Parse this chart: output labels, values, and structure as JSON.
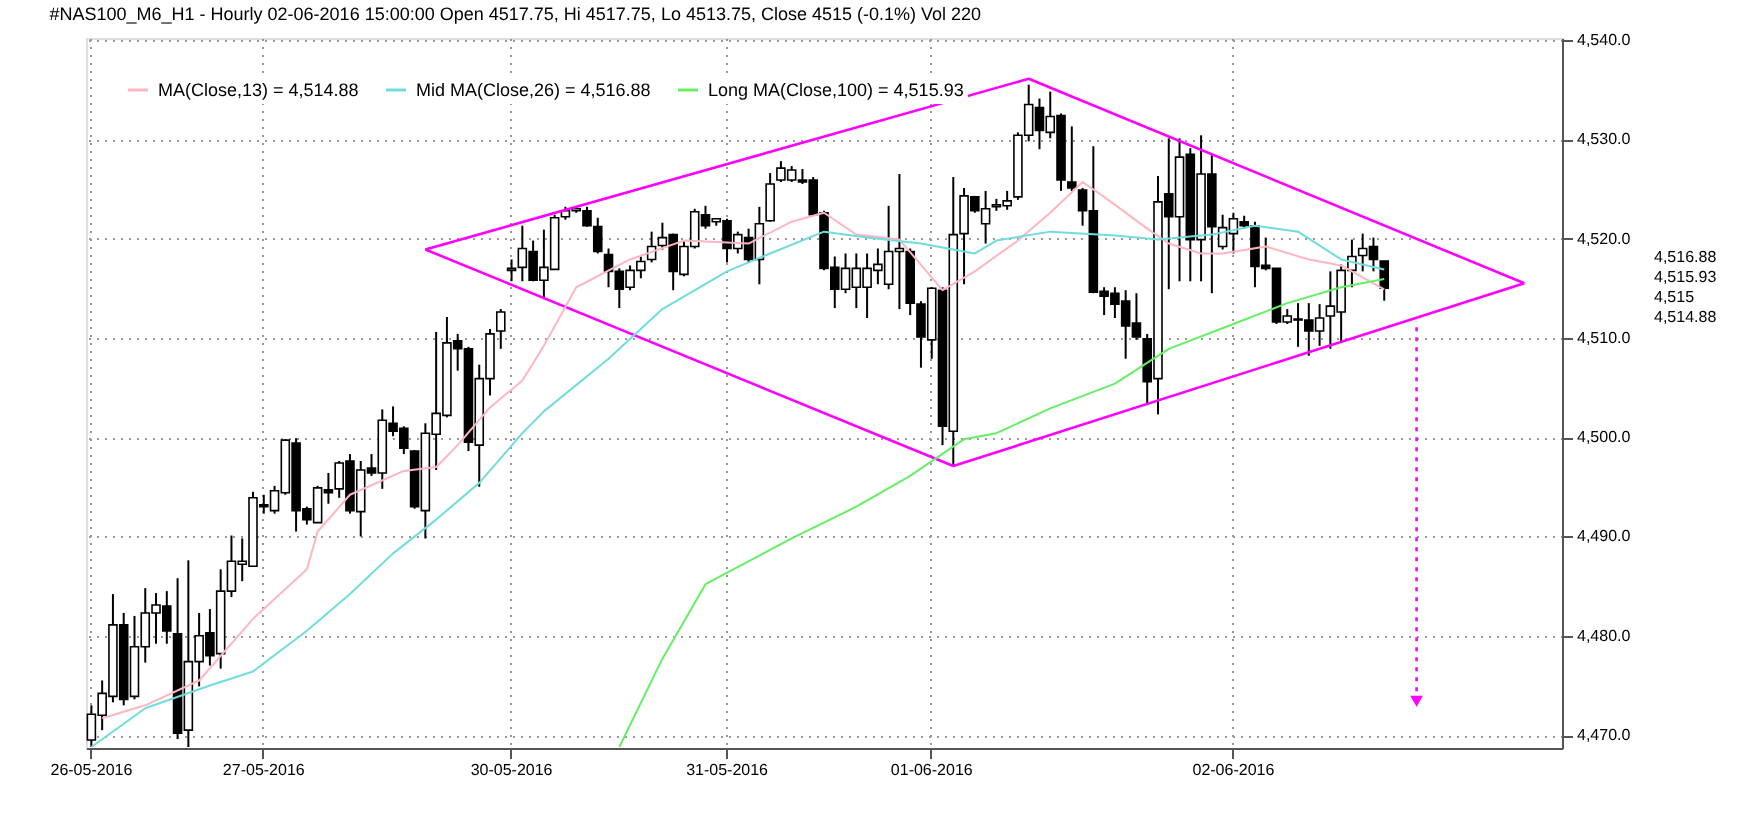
{
  "chart_data": {
    "type": "candlestick",
    "title": "#NAS100_M6_H1 - Hourly 02-06-2016 15:00:00 Open 4517.75, Hi 4517.75, Lo 4513.75, Close 4515 (-0.1%) Vol 220",
    "categories": [
      "26-05-2016",
      null,
      null,
      null,
      null,
      null,
      null,
      null,
      null,
      null,
      null,
      null,
      null,
      null,
      null,
      null,
      "27-05-2016",
      null,
      null,
      null,
      null,
      null,
      null,
      null,
      null,
      null,
      null,
      null,
      null,
      null,
      null,
      null,
      null,
      null,
      null,
      null,
      null,
      null,
      null,
      "30-05-2016",
      null,
      null,
      null,
      null,
      null,
      null,
      null,
      null,
      null,
      null,
      null,
      null,
      null,
      null,
      null,
      null,
      null,
      null,
      null,
      "31-05-2016",
      null,
      null,
      null,
      null,
      null,
      null,
      null,
      null,
      null,
      null,
      null,
      null,
      null,
      null,
      null,
      null,
      null,
      null,
      "01-06-2016",
      null,
      null,
      null,
      null,
      null,
      null,
      null,
      null,
      null,
      null,
      null,
      null,
      null,
      null,
      null,
      null,
      null,
      null,
      null,
      null,
      null,
      null,
      null,
      null,
      null,
      null,
      null,
      "02-06-2016",
      null,
      null,
      null,
      null,
      null,
      null,
      null,
      null,
      null,
      null,
      null,
      null,
      null,
      null,
      null,
      null,
      null,
      null,
      null,
      null,
      null,
      null,
      null,
      null,
      null,
      null,
      null,
      null,
      null,
      null
    ],
    "ohlc": [
      [
        4469.5,
        4473.0,
        4468.8,
        4472.1
      ],
      [
        4472.0,
        4475.5,
        4470.5,
        4474.2
      ],
      [
        4473.9,
        4484.2,
        4473.3,
        4481.1
      ],
      [
        4481.1,
        4482.3,
        4473.0,
        4473.6
      ],
      [
        4473.9,
        4482.0,
        4473.6,
        4478.9
      ],
      [
        4478.9,
        4484.8,
        4477.3,
        4482.3
      ],
      [
        4482.3,
        4484.3,
        4479.2,
        4483.1
      ],
      [
        4483.0,
        4484.5,
        4479.2,
        4480.5
      ],
      [
        4480.2,
        4485.8,
        4469.6,
        4470.2
      ],
      [
        4470.5,
        4487.6,
        4468.8,
        4477.4
      ],
      [
        4477.4,
        4482.3,
        4474.9,
        4480.0
      ],
      [
        4480.3,
        4482.7,
        4477.0,
        4478.0
      ],
      [
        4478.2,
        4486.7,
        4476.7,
        4484.5
      ],
      [
        4484.5,
        4490.1,
        4483.9,
        4487.5
      ],
      [
        4487.2,
        4489.8,
        4485.5,
        4487.5
      ],
      [
        4487.0,
        4494.5,
        4487.0,
        4493.9
      ],
      [
        4493.2,
        4494.2,
        4492.3,
        4493.0
      ],
      [
        4492.6,
        4495.1,
        4492.3,
        4494.6
      ],
      [
        4494.4,
        4499.8,
        4494.2,
        4499.7
      ],
      [
        4499.4,
        4499.9,
        4490.5,
        4492.6
      ],
      [
        4492.8,
        4493.0,
        4491.2,
        4491.7
      ],
      [
        4491.4,
        4495.1,
        4491.4,
        4494.9
      ],
      [
        4494.7,
        4496.4,
        4493.3,
        4494.4
      ],
      [
        4494.8,
        4497.6,
        4493.9,
        4497.4
      ],
      [
        4497.6,
        4498.3,
        4492.3,
        4492.6
      ],
      [
        4492.5,
        4497.6,
        4490.0,
        4496.7
      ],
      [
        4496.9,
        4498.3,
        4496.1,
        4496.4
      ],
      [
        4496.4,
        4502.8,
        4494.8,
        4501.7
      ],
      [
        4501.4,
        4503.1,
        4500.1,
        4500.6
      ],
      [
        4500.9,
        4501.1,
        4498.3,
        4498.9
      ],
      [
        4498.6,
        4498.7,
        4492.8,
        4493.0
      ],
      [
        4492.6,
        4501.4,
        4489.8,
        4500.4
      ],
      [
        4500.3,
        4510.6,
        4496.7,
        4502.4
      ],
      [
        4502.2,
        4512.1,
        4502.0,
        4509.5
      ],
      [
        4509.7,
        4510.4,
        4506.7,
        4508.9
      ],
      [
        4508.9,
        4509.1,
        4498.6,
        4499.5
      ],
      [
        4499.2,
        4507.3,
        4495.0,
        4505.9
      ],
      [
        4505.9,
        4510.9,
        4504.2,
        4510.4
      ],
      [
        4510.7,
        4512.9,
        4508.9,
        4512.6
      ],
      [
        4516.8,
        4517.9,
        4515.7,
        4517.0
      ],
      [
        4517.1,
        4521.3,
        4515.7,
        4519.0
      ],
      [
        4518.7,
        4519.8,
        4515.7,
        4515.8
      ],
      [
        4515.8,
        4520.9,
        4513.9,
        4517.1
      ],
      [
        4516.9,
        4522.4,
        4516.9,
        4522.1
      ],
      [
        4522.2,
        4523.2,
        4521.9,
        4522.8
      ],
      [
        4522.8,
        4523.2,
        4522.6,
        4523.0
      ],
      [
        4522.8,
        4523.2,
        4521.2,
        4521.3
      ],
      [
        4521.2,
        4522.1,
        4518.5,
        4518.7
      ],
      [
        4518.4,
        4519.0,
        4515.1,
        4516.7
      ],
      [
        4516.7,
        4517.0,
        4513.0,
        4514.9
      ],
      [
        4515.1,
        4517.3,
        4514.8,
        4516.8
      ],
      [
        4516.8,
        4518.2,
        4516.0,
        4517.7
      ],
      [
        4517.9,
        4520.7,
        4517.6,
        4519.2
      ],
      [
        4519.3,
        4521.6,
        4518.9,
        4520.1
      ],
      [
        4520.4,
        4520.5,
        4514.8,
        4516.7
      ],
      [
        4516.4,
        4519.7,
        4516.2,
        4519.2
      ],
      [
        4519.2,
        4523.0,
        4519.0,
        4522.7
      ],
      [
        4522.4,
        4523.3,
        4521.0,
        4521.3
      ],
      [
        4521.7,
        4522.0,
        4521.3,
        4522.0
      ],
      [
        4521.8,
        4522.0,
        4517.6,
        4519.0
      ],
      [
        4519.0,
        4520.7,
        4518.5,
        4520.4
      ],
      [
        4520.1,
        4521.0,
        4517.6,
        4517.9
      ],
      [
        4517.9,
        4523.2,
        4515.4,
        4521.5
      ],
      [
        4521.8,
        4526.6,
        4521.7,
        4525.5
      ],
      [
        4525.9,
        4527.8,
        4525.7,
        4527.1
      ],
      [
        4525.9,
        4527.3,
        4525.7,
        4526.9
      ],
      [
        4525.9,
        4527.0,
        4525.5,
        4525.7
      ],
      [
        4525.9,
        4526.2,
        4522.3,
        4522.4
      ],
      [
        4522.6,
        4522.8,
        4516.8,
        4517.0
      ],
      [
        4517.1,
        4518.2,
        4513.0,
        4514.9
      ],
      [
        4514.9,
        4518.5,
        4514.5,
        4517.0
      ],
      [
        4515.1,
        4518.5,
        4513.0,
        4517.0
      ],
      [
        4515.1,
        4518.5,
        4512.0,
        4517.0
      ],
      [
        4516.8,
        4519.0,
        4515.4,
        4517.4
      ],
      [
        4515.4,
        4523.3,
        4514.9,
        4518.7
      ],
      [
        4518.7,
        4526.5,
        4512.9,
        4519.0
      ],
      [
        4518.7,
        4519.0,
        4512.3,
        4513.5
      ],
      [
        4513.4,
        4513.7,
        4507.0,
        4510.1
      ],
      [
        4509.8,
        4515.1,
        4507.9,
        4515.0
      ],
      [
        4514.8,
        4515.1,
        4499.2,
        4501.1
      ],
      [
        4500.6,
        4526.2,
        4497.1,
        4520.4
      ],
      [
        4520.5,
        4525.1,
        4515.4,
        4524.3
      ],
      [
        4524.2,
        4524.3,
        4522.6,
        4522.8
      ],
      [
        4521.5,
        4524.8,
        4519.5,
        4523.0
      ],
      [
        4523.2,
        4524.0,
        4522.8,
        4523.4
      ],
      [
        4523.3,
        4524.8,
        4522.9,
        4523.8
      ],
      [
        4524.2,
        4530.7,
        4523.9,
        4530.4
      ],
      [
        4530.4,
        4535.5,
        4529.8,
        4533.5
      ],
      [
        4533.2,
        4534.1,
        4529.0,
        4530.9
      ],
      [
        4530.7,
        4534.8,
        4530.1,
        4532.3
      ],
      [
        4532.4,
        4532.6,
        4524.8,
        4525.9
      ],
      [
        4525.7,
        4531.3,
        4524.8,
        4525.1
      ],
      [
        4524.9,
        4525.1,
        4521.3,
        4522.8
      ],
      [
        4522.8,
        4529.3,
        4514.5,
        4514.6
      ],
      [
        4514.7,
        4515.1,
        4512.3,
        4514.2
      ],
      [
        4514.5,
        4515.1,
        4512.0,
        4513.4
      ],
      [
        4513.7,
        4514.8,
        4507.9,
        4511.2
      ],
      [
        4511.5,
        4514.5,
        4509.8,
        4510.1
      ],
      [
        4509.9,
        4510.4,
        4503.3,
        4505.6
      ],
      [
        4505.9,
        4526.3,
        4502.3,
        4523.7
      ],
      [
        4524.5,
        4530.1,
        4514.9,
        4522.2
      ],
      [
        4522.2,
        4530.1,
        4515.7,
        4528.2
      ],
      [
        4528.5,
        4529.1,
        4515.7,
        4519.9
      ],
      [
        4519.9,
        4530.4,
        4515.7,
        4526.5
      ],
      [
        4526.5,
        4528.5,
        4514.5,
        4521.2
      ],
      [
        4519.2,
        4522.4,
        4518.9,
        4521.1
      ],
      [
        4520.5,
        4522.6,
        4518.5,
        4522.0
      ],
      [
        4521.7,
        4522.3,
        4521.0,
        4521.3
      ],
      [
        4521.3,
        4521.7,
        4515.1,
        4517.2
      ],
      [
        4517.3,
        4520.1,
        4516.8,
        4517.0
      ],
      [
        4517.0,
        4517.0,
        4511.4,
        4511.6
      ],
      [
        4511.6,
        4512.9,
        4511.4,
        4512.2
      ],
      [
        4511.8,
        4513.5,
        4509.1,
        4511.9
      ],
      [
        4511.8,
        4513.5,
        4508.2,
        4510.7
      ],
      [
        4510.7,
        4513.4,
        4509.2,
        4512.0
      ],
      [
        4512.2,
        4516.7,
        4508.9,
        4513.2
      ],
      [
        4512.6,
        4517.4,
        4509.5,
        4516.8
      ],
      [
        4516.8,
        4519.9,
        4515.1,
        4518.2
      ],
      [
        4518.3,
        4520.5,
        4516.7,
        4519.0
      ],
      [
        4519.2,
        4520.1,
        4516.7,
        4517.9
      ],
      [
        4517.75,
        4517.75,
        4513.75,
        4515
      ],
      null,
      null,
      null,
      null,
      null,
      null,
      null,
      null,
      null,
      null,
      null,
      null,
      null,
      null,
      null,
      null
    ],
    "series": [
      {
        "type": "line",
        "name": "MA(Close,13) = 4,514.88",
        "color": "#ffb6c1",
        "values": [
          null,
          4471.7,
          null,
          null,
          null,
          4473.0,
          null,
          null,
          null,
          null,
          4475.5,
          null,
          null,
          null,
          null,
          4481.7,
          null,
          null,
          null,
          null,
          4486.7,
          4490.5,
          null,
          null,
          4494.2,
          null,
          null,
          null,
          null,
          4496.6,
          null,
          null,
          4497.0,
          null,
          4499.2,
          null,
          null,
          4503.0,
          null,
          null,
          4505.7,
          null,
          4509.2,
          null,
          null,
          4515.1,
          null,
          null,
          null,
          null,
          4517.9,
          null,
          null,
          null,
          null,
          4519.8,
          null,
          null,
          null,
          null,
          null,
          4519.5,
          null,
          null,
          null,
          4521.7,
          null,
          null,
          4522.6,
          null,
          null,
          4520.4,
          null,
          null,
          null,
          4519.9,
          null,
          null,
          null,
          4514.8,
          null,
          null,
          4516.7,
          null,
          null,
          null,
          4519.8,
          null,
          null,
          4522.6,
          null,
          null,
          4525.7,
          null,
          4524.2,
          null,
          null,
          null,
          4521.0,
          null,
          4519.5,
          null,
          null,
          4518.5,
          null,
          4518.5,
          null,
          null,
          null,
          4519.2,
          null,
          null,
          null,
          4517.9,
          null,
          null,
          4517.3,
          null,
          null,
          null,
          4514.88,
          null,
          null,
          null,
          null,
          null,
          null,
          null,
          null,
          null,
          null,
          null,
          null,
          null,
          null,
          null,
          null
        ]
      },
      {
        "type": "line",
        "name": "Mid MA(Close,26) = 4,516.88",
        "color": "#70dcdc",
        "values": [
          4468.8,
          null,
          null,
          null,
          null,
          4472.7,
          null,
          null,
          null,
          null,
          null,
          4475.0,
          null,
          null,
          null,
          4476.4,
          null,
          null,
          null,
          null,
          4480.5,
          null,
          null,
          null,
          4484.2,
          null,
          null,
          null,
          4488.3,
          null,
          null,
          null,
          4491.7,
          null,
          null,
          null,
          4495.4,
          null,
          null,
          null,
          4500.4,
          null,
          4502.6,
          null,
          null,
          null,
          null,
          null,
          4507.9,
          null,
          null,
          null,
          null,
          4512.9,
          null,
          null,
          null,
          null,
          null,
          4516.7,
          null,
          null,
          null,
          4518.5,
          null,
          null,
          null,
          null,
          4520.7,
          null,
          null,
          null,
          4520.1,
          null,
          null,
          null,
          null,
          4519.5,
          null,
          null,
          null,
          null,
          4518.5,
          null,
          4519.8,
          null,
          null,
          null,
          null,
          4520.7,
          null,
          null,
          null,
          null,
          null,
          4520.3,
          null,
          null,
          null,
          4519.9,
          null,
          null,
          null,
          null,
          4520.4,
          null,
          null,
          null,
          4521.3,
          null,
          null,
          null,
          4520.7,
          null,
          null,
          null,
          4517.9,
          null,
          null,
          null,
          4516.88,
          null,
          null,
          null,
          null,
          null,
          null,
          null,
          null,
          null,
          null,
          null,
          null,
          null,
          null,
          null,
          null
        ]
      },
      {
        "type": "line",
        "name": "Long MA(Close,100) = 4,515.93",
        "color": "#66ee66",
        "values": [
          null,
          null,
          null,
          null,
          null,
          null,
          null,
          null,
          null,
          null,
          null,
          null,
          null,
          null,
          null,
          null,
          null,
          null,
          null,
          null,
          null,
          null,
          null,
          null,
          null,
          null,
          null,
          null,
          null,
          null,
          null,
          null,
          null,
          null,
          null,
          null,
          null,
          null,
          null,
          null,
          null,
          null,
          null,
          null,
          null,
          null,
          null,
          null,
          null,
          4468.8,
          null,
          null,
          null,
          4477.7,
          null,
          null,
          null,
          4485.2,
          null,
          null,
          null,
          null,
          null,
          null,
          null,
          4489.8,
          null,
          null,
          null,
          null,
          null,
          4493.0,
          null,
          null,
          null,
          null,
          4496.1,
          null,
          null,
          null,
          null,
          4499.8,
          null,
          null,
          4500.4,
          null,
          null,
          null,
          null,
          4502.9,
          null,
          null,
          null,
          null,
          null,
          4505.4,
          null,
          null,
          null,
          null,
          4508.9,
          null,
          null,
          null,
          null,
          null,
          4511.4,
          null,
          null,
          null,
          null,
          4513.5,
          null,
          null,
          null,
          null,
          4515.1,
          null,
          null,
          null,
          4515.93,
          null,
          null,
          null,
          null,
          null,
          null,
          null,
          null,
          null,
          null,
          null,
          null,
          null,
          null,
          null,
          null
        ]
      },
      {
        "type": "line",
        "color": "#ff00ff",
        "values": [
          null,
          null,
          null,
          null,
          null,
          null,
          null,
          null,
          null,
          null,
          null,
          null,
          null,
          null,
          null,
          null,
          null,
          null,
          null,
          null,
          null,
          null,
          null,
          null,
          null,
          null,
          null,
          null,
          null,
          null,
          null,
          4518.9,
          null,
          null,
          null,
          null,
          null,
          null,
          null,
          null,
          null,
          null,
          null,
          null,
          null,
          null,
          null,
          null,
          null,
          null,
          null,
          null,
          null,
          null,
          null,
          null,
          null,
          null,
          null,
          null,
          null,
          null,
          null,
          null,
          null,
          null,
          null,
          null,
          null,
          null,
          null,
          null,
          null,
          null,
          null,
          null,
          null,
          null,
          null,
          null,
          null,
          null,
          null,
          null,
          null,
          null,
          null,
          4536.1,
          null,
          null,
          null,
          null,
          null,
          null,
          null,
          null,
          null,
          null,
          null,
          null,
          null,
          null,
          null,
          null,
          null,
          null,
          null,
          null,
          null,
          null,
          null,
          null,
          null,
          null,
          null,
          null,
          null,
          null,
          null,
          null,
          null,
          null,
          null,
          null,
          null,
          null,
          null,
          null,
          null,
          null,
          null,
          null,
          null,
          4515.5,
          null,
          null,
          null
        ]
      },
      {
        "type": "line",
        "color": "#ff00ff",
        "values": [
          null,
          null,
          null,
          null,
          null,
          null,
          null,
          null,
          null,
          null,
          null,
          null,
          null,
          null,
          null,
          null,
          null,
          null,
          null,
          null,
          null,
          null,
          null,
          null,
          null,
          null,
          null,
          null,
          null,
          null,
          null,
          4518.9,
          null,
          null,
          null,
          null,
          null,
          null,
          null,
          null,
          null,
          null,
          null,
          null,
          null,
          null,
          null,
          null,
          null,
          null,
          null,
          null,
          null,
          null,
          null,
          null,
          null,
          null,
          null,
          null,
          null,
          null,
          null,
          null,
          null,
          null,
          null,
          null,
          null,
          null,
          null,
          null,
          null,
          null,
          null,
          null,
          null,
          null,
          null,
          null,
          4497.1,
          null,
          null,
          null,
          null,
          null,
          null,
          null,
          null,
          null,
          null,
          null,
          null,
          null,
          null,
          null,
          null,
          null,
          null,
          null,
          null,
          null,
          null,
          null,
          null,
          null,
          null,
          null,
          null,
          null,
          null,
          null,
          null,
          null,
          null,
          null,
          null,
          null,
          null,
          null,
          null,
          null,
          null,
          null,
          null,
          null,
          null,
          null,
          null,
          null,
          null,
          null,
          null,
          4515.5,
          null,
          null,
          null
        ]
      },
      {
        "type": "scatter",
        "color": "#ff00ff",
        "marker": "triangle",
        "line_style": "dotted",
        "values": [
          null,
          null,
          null,
          null,
          null,
          null,
          null,
          null,
          null,
          null,
          null,
          null,
          null,
          null,
          null,
          null,
          null,
          null,
          null,
          null,
          null,
          null,
          null,
          null,
          null,
          null,
          null,
          null,
          null,
          null,
          null,
          null,
          null,
          null,
          null,
          null,
          null,
          null,
          null,
          null,
          null,
          null,
          null,
          null,
          null,
          null,
          null,
          null,
          null,
          null,
          null,
          null,
          null,
          null,
          null,
          null,
          null,
          null,
          null,
          null,
          null,
          null,
          null,
          null,
          null,
          null,
          null,
          null,
          null,
          null,
          null,
          null,
          null,
          null,
          null,
          null,
          null,
          null,
          null,
          null,
          null,
          null,
          null,
          null,
          null,
          null,
          null,
          null,
          null,
          null,
          null,
          null,
          null,
          null,
          null,
          null,
          null,
          null,
          null,
          null,
          null,
          null,
          null,
          null,
          null,
          null,
          null,
          null,
          null,
          null,
          null,
          null,
          null,
          null,
          null,
          null,
          null,
          null,
          null,
          null,
          null,
          null,
          null,
          4473.4,
          null,
          null,
          null,
          null,
          null,
          null,
          null,
          null,
          null,
          null,
          null,
          null,
          null
        ],
        "errors": [
          null,
          null,
          null,
          null,
          null,
          null,
          null,
          null,
          null,
          null,
          null,
          null,
          null,
          null,
          null,
          null,
          null,
          null,
          null,
          null,
          null,
          null,
          null,
          null,
          null,
          null,
          null,
          null,
          null,
          null,
          null,
          null,
          null,
          null,
          null,
          null,
          null,
          null,
          null,
          null,
          null,
          null,
          null,
          null,
          null,
          null,
          null,
          null,
          null,
          null,
          null,
          null,
          null,
          null,
          null,
          null,
          null,
          null,
          null,
          null,
          null,
          null,
          null,
          null,
          null,
          null,
          null,
          null,
          null,
          null,
          null,
          null,
          null,
          null,
          null,
          null,
          null,
          null,
          null,
          null,
          null,
          null,
          null,
          null,
          null,
          null,
          null,
          null,
          null,
          null,
          null,
          null,
          null,
          null,
          null,
          null,
          null,
          null,
          null,
          null,
          null,
          null,
          null,
          null,
          null,
          null,
          null,
          null,
          null,
          null,
          null,
          null,
          null,
          null,
          null,
          null,
          null,
          null,
          null,
          null,
          null,
          null,
          null,
          [
            4473.4,
            4511.7
          ],
          null,
          null,
          null,
          null,
          null,
          null,
          null,
          null,
          null,
          null,
          null,
          null,
          null
        ]
      }
    ],
    "annotations": [
      "4,516.88",
      "4,515.93",
      "4,515",
      "4,514.88"
    ],
    "ylim": [
      4468.7,
      4540.2
    ],
    "yticks": [
      {
        "value": 4470,
        "label": "4,470.0"
      },
      {
        "value": 4480,
        "label": "4,480.0"
      },
      {
        "value": 4490,
        "label": "4,490.0"
      },
      {
        "value": 4500,
        "label": "4,500.0"
      },
      {
        "value": 4510,
        "label": "4,510.0"
      },
      {
        "value": 4520,
        "label": "4,520.0"
      },
      {
        "value": 4530,
        "label": "4,530.0"
      },
      {
        "value": 4540,
        "label": "4,540.0"
      }
    ],
    "grid": true,
    "legend": "top left"
  }
}
